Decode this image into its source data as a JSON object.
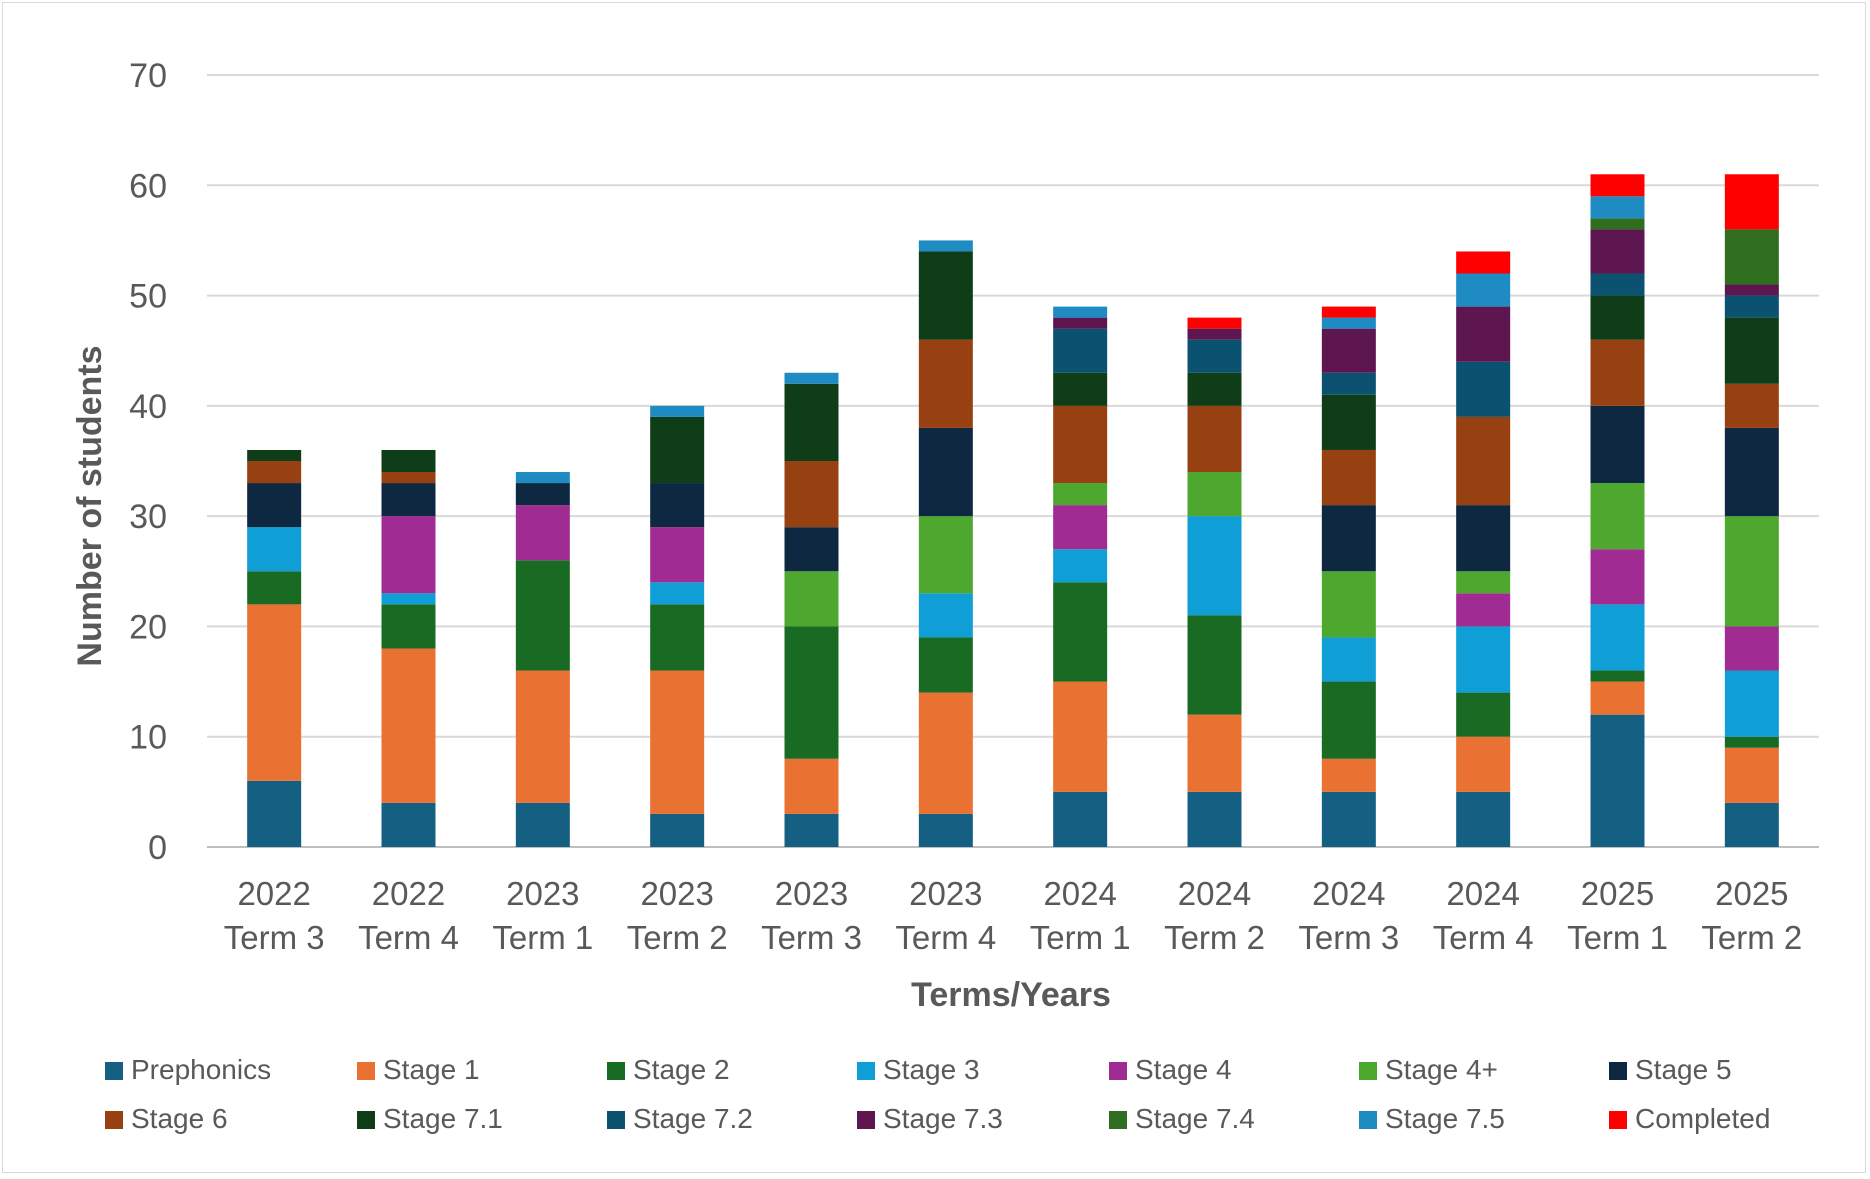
{
  "chart_data": {
    "type": "bar",
    "stacked": true,
    "xlabel": "Terms/Years",
    "ylabel": "Number of students",
    "ylim": [
      0,
      70
    ],
    "yticks": [
      0,
      10,
      20,
      30,
      40,
      50,
      60,
      70
    ],
    "grid": true,
    "legend_position": "bottom",
    "categories": [
      [
        "2022",
        "Term 3"
      ],
      [
        "2022",
        "Term 4"
      ],
      [
        "2023",
        "Term 1"
      ],
      [
        "2023",
        "Term 2"
      ],
      [
        "2023",
        "Term 3"
      ],
      [
        "2023",
        "Term 4"
      ],
      [
        "2024",
        "Term 1"
      ],
      [
        "2024",
        "Term 2"
      ],
      [
        "2024",
        "Term 3"
      ],
      [
        "2024",
        "Term 4"
      ],
      [
        "2025",
        "Term 1"
      ],
      [
        "2025",
        "Term 2"
      ]
    ],
    "series": [
      {
        "name": "Prephonics",
        "color": "#156082",
        "values": [
          6,
          4,
          4,
          3,
          3,
          3,
          5,
          5,
          5,
          5,
          12,
          4
        ]
      },
      {
        "name": "Stage 1",
        "color": "#E97132",
        "values": [
          16,
          14,
          12,
          13,
          5,
          11,
          10,
          7,
          3,
          5,
          3,
          5
        ]
      },
      {
        "name": "Stage 2",
        "color": "#196B24",
        "values": [
          3,
          4,
          10,
          6,
          12,
          5,
          9,
          9,
          7,
          4,
          1,
          1
        ]
      },
      {
        "name": "Stage 3",
        "color": "#0F9ED5",
        "values": [
          4,
          1,
          0,
          2,
          0,
          4,
          3,
          9,
          4,
          6,
          6,
          6
        ]
      },
      {
        "name": "Stage 4",
        "color": "#A02B93",
        "values": [
          0,
          7,
          5,
          5,
          0,
          0,
          4,
          0,
          0,
          3,
          5,
          4
        ]
      },
      {
        "name": "Stage 4+",
        "color": "#4EA72E",
        "values": [
          0,
          0,
          0,
          0,
          5,
          7,
          2,
          4,
          6,
          2,
          6,
          10
        ]
      },
      {
        "name": "Stage 5",
        "color": "#0E2841",
        "values": [
          4,
          3,
          2,
          4,
          4,
          8,
          0,
          0,
          6,
          6,
          7,
          8
        ]
      },
      {
        "name": "Stage 6",
        "color": "#974011",
        "values": [
          2,
          1,
          0,
          0,
          6,
          8,
          7,
          6,
          5,
          8,
          6,
          4
        ]
      },
      {
        "name": "Stage 7.1",
        "color": "#0F3D17",
        "values": [
          1,
          2,
          0,
          6,
          7,
          8,
          3,
          3,
          5,
          0,
          4,
          6
        ]
      },
      {
        "name": "Stage 7.2",
        "color": "#0B5270",
        "values": [
          0,
          0,
          0,
          0,
          0,
          0,
          4,
          3,
          2,
          5,
          2,
          2
        ]
      },
      {
        "name": "Stage 7.3",
        "color": "#5E1650",
        "values": [
          0,
          0,
          0,
          0,
          0,
          0,
          1,
          1,
          4,
          5,
          4,
          1
        ]
      },
      {
        "name": "Stage 7.4",
        "color": "#2F6E1F",
        "values": [
          0,
          0,
          0,
          0,
          0,
          0,
          0,
          0,
          0,
          0,
          1,
          5
        ]
      },
      {
        "name": "Stage 7.5",
        "color": "#1E8BC3",
        "values": [
          0,
          0,
          1,
          1,
          1,
          1,
          1,
          0,
          1,
          3,
          2,
          0
        ]
      },
      {
        "name": "Completed",
        "color": "#FF0000",
        "values": [
          0,
          0,
          0,
          0,
          0,
          0,
          0,
          1,
          1,
          2,
          2,
          5
        ]
      }
    ]
  }
}
